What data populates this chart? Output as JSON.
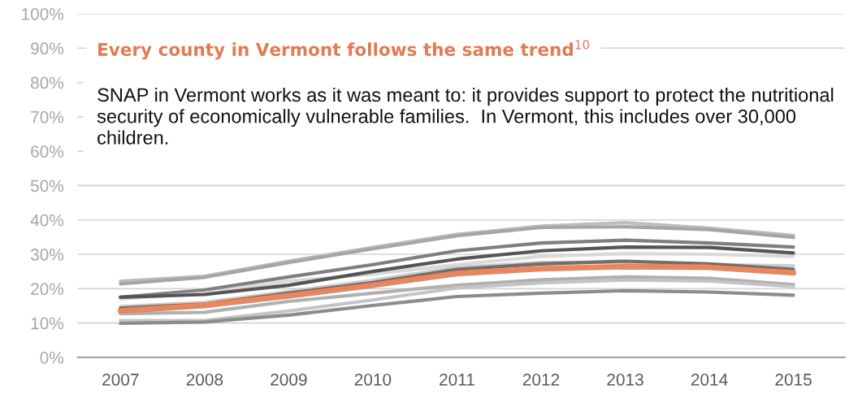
{
  "chart_data": {
    "type": "line",
    "title": "Every county in Vermont follows the same trend$^{10}$",
    "annotations": [
      "SNAP in Vermont works as it was meant to: it provides support to protect the nutritional security of economically vulnerable families.  In Vermont, this includes over 30,000 children."
    ],
    "categories": [
      "2007",
      "2008",
      "2009",
      "2010",
      "2011",
      "2012",
      "2013",
      "2014",
      "2015"
    ],
    "series": [
      {
        "color": "#bdbdbd",
        "values": [
          22.2,
          23.6,
          28,
          32,
          35.8,
          38.2,
          39.2,
          37.6,
          35.5
        ]
      },
      {
        "color": "#a6a6a6",
        "values": [
          21.4,
          23.3,
          27.6,
          31.6,
          35.4,
          37.8,
          38,
          37.2,
          34.9
        ]
      },
      {
        "color": "#7f7f7f",
        "values": [
          17.5,
          19.6,
          23.4,
          27,
          31,
          33.3,
          34.1,
          33.3,
          32.1
        ]
      },
      {
        "color": "#d9d9d9",
        "values": [
          17,
          18.7,
          22.2,
          24.2,
          27,
          29.4,
          30.2,
          30,
          29.4
        ]
      },
      {
        "color": "#555555",
        "values": [
          17.5,
          18.3,
          21,
          25,
          28.6,
          31,
          32.1,
          32,
          30.4
        ]
      },
      {
        "color": "#cccccc",
        "values": [
          14.8,
          16,
          19.2,
          22.4,
          26.2,
          27.6,
          27.6,
          27,
          26.6
        ]
      },
      {
        "color": "#6f6f6f",
        "values": [
          14.3,
          15.5,
          18.7,
          21.8,
          25.6,
          27.2,
          28,
          27.2,
          25.6
        ]
      },
      {
        "color": "#b0b0b0",
        "values": [
          12.7,
          13.1,
          16.3,
          18.7,
          21,
          22.6,
          23.4,
          23,
          21.2
        ]
      },
      {
        "color": "#c4c4c4",
        "values": [
          10.7,
          10.7,
          13.5,
          16.7,
          20.2,
          21.7,
          22.5,
          22.2,
          20.6
        ]
      },
      {
        "color": "#8c8c8c",
        "values": [
          9.9,
          10.3,
          12.3,
          15.1,
          17.7,
          18.7,
          19.4,
          19,
          18.1
        ]
      },
      {
        "color": "#e8865e",
        "values": [
          13.5,
          15.1,
          17.9,
          21,
          24.4,
          25.8,
          26.4,
          26.2,
          24.6
        ]
      }
    ],
    "ylim": [
      0,
      100
    ],
    "yticks": [
      {
        "value": 0,
        "label": "0%"
      },
      {
        "value": 10,
        "label": "10%"
      },
      {
        "value": 20,
        "label": "20%"
      },
      {
        "value": 30,
        "label": "30%"
      },
      {
        "value": 40,
        "label": "40%"
      },
      {
        "value": 50,
        "label": "50%"
      },
      {
        "value": 60,
        "label": "60%"
      },
      {
        "value": 70,
        "label": "70%"
      },
      {
        "value": 80,
        "label": "80%"
      },
      {
        "value": 90,
        "label": "90%"
      },
      {
        "value": 100,
        "label": "100%"
      }
    ],
    "grid": "y",
    "legend": false,
    "marker": "none",
    "line_style": "solid"
  }
}
